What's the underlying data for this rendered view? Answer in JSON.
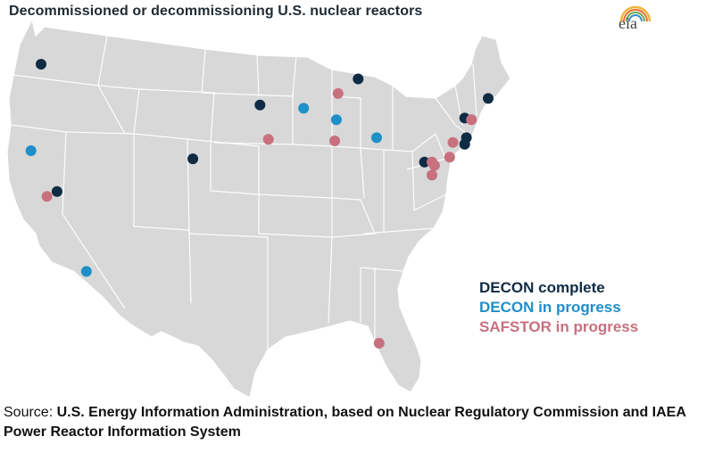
{
  "title": "Decommissioned or decommissioning U.S. nuclear reactors",
  "logo": {
    "text": "eia",
    "icon": "eia-sun-rays-icon"
  },
  "legend": [
    {
      "label": "DECON complete",
      "color": "#0f2c44"
    },
    {
      "label": "DECON in progress",
      "color": "#1e8fc9"
    },
    {
      "label": "SAFSTOR in progress",
      "color": "#c8707e"
    }
  ],
  "source": {
    "prefix": "Source: ",
    "text": "U.S. Energy Information Administration, based on Nuclear Regulatory Commission and IAEA Power Reactor Information System"
  },
  "map": {
    "land_color": "#d8d8d8",
    "border_color": "#ffffff",
    "sites": [
      {
        "status": "DECON complete",
        "place": "Washington",
        "lon": -123.0,
        "lat": 46.1
      },
      {
        "status": "DECON in progress",
        "place": "Northern California coast",
        "lon": -124.2,
        "lat": 40.8
      },
      {
        "status": "DECON complete",
        "place": "Northern California",
        "lon": -121.1,
        "lat": 38.3
      },
      {
        "status": "SAFSTOR in progress",
        "place": "Northern California",
        "lon": -122.3,
        "lat": 38.0
      },
      {
        "status": "DECON in progress",
        "place": "Southern California",
        "lon": -117.6,
        "lat": 33.4
      },
      {
        "status": "DECON complete",
        "place": "Colorado",
        "lon": -104.9,
        "lat": 40.3
      },
      {
        "status": "DECON complete",
        "place": "South Dakota",
        "lon": -96.9,
        "lat": 43.6
      },
      {
        "status": "SAFSTOR in progress",
        "place": "Nebraska",
        "lon": -95.9,
        "lat": 41.5
      },
      {
        "status": "DECON in progress",
        "place": "Minnesota / Wisconsin",
        "lon": -91.7,
        "lat": 43.4
      },
      {
        "status": "SAFSTOR in progress",
        "place": "Wisconsin",
        "lon": -87.6,
        "lat": 44.3
      },
      {
        "status": "DECON in progress",
        "place": "Wisconsin",
        "lon": -87.8,
        "lat": 42.7
      },
      {
        "status": "SAFSTOR in progress",
        "place": "Illinois",
        "lon": -88.0,
        "lat": 41.4
      },
      {
        "status": "DECON complete",
        "place": "Michigan",
        "lon": -85.2,
        "lat": 45.2
      },
      {
        "status": "DECON in progress",
        "place": "Ohio",
        "lon": -83.0,
        "lat": 41.6
      },
      {
        "status": "DECON complete",
        "place": "Pennsylvania",
        "lon": -77.3,
        "lat": 40.1
      },
      {
        "status": "SAFSTOR in progress",
        "place": "Pennsylvania",
        "lon": -76.4,
        "lat": 40.1
      },
      {
        "status": "SAFSTOR in progress",
        "place": "Pennsylvania",
        "lon": -76.1,
        "lat": 39.9
      },
      {
        "status": "SAFSTOR in progress",
        "place": "Maryland",
        "lon": -76.4,
        "lat": 39.3
      },
      {
        "status": "DECON complete",
        "place": "Maine",
        "lon": -69.7,
        "lat": 44.0
      },
      {
        "status": "DECON complete",
        "place": "Vermont / Massachusetts",
        "lon": -72.5,
        "lat": 42.8
      },
      {
        "status": "SAFSTOR in progress",
        "place": "Massachusetts",
        "lon": -71.7,
        "lat": 42.7
      },
      {
        "status": "DECON complete",
        "place": "Connecticut",
        "lon": -72.3,
        "lat": 41.6
      },
      {
        "status": "DECON complete",
        "place": "Connecticut",
        "lon": -72.5,
        "lat": 41.2
      },
      {
        "status": "SAFSTOR in progress",
        "place": "New York",
        "lon": -73.9,
        "lat": 41.3
      },
      {
        "status": "SAFSTOR in progress",
        "place": "New Jersey",
        "lon": -74.3,
        "lat": 40.4
      },
      {
        "status": "SAFSTOR in progress",
        "place": "Florida",
        "lon": -82.7,
        "lat": 29.0
      }
    ]
  }
}
